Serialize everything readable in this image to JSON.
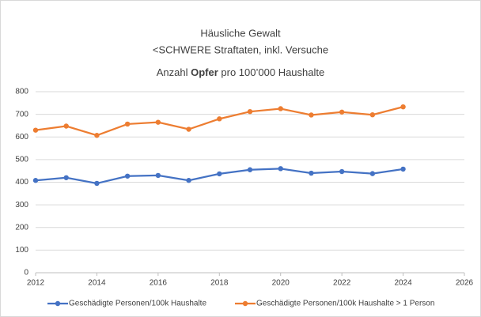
{
  "chart_data": {
    "type": "line",
    "title": "Häusliche Gewalt",
    "subtitle_top": "<SCHWERE Straftaten, inkl. Versuche",
    "subtitle_parts": [
      "Anzahl ",
      "Opfer",
      " pro 100’000 Haushalte"
    ],
    "x": [
      2012,
      2013,
      2014,
      2015,
      2016,
      2017,
      2018,
      2019,
      2020,
      2021,
      2022,
      2023,
      2024
    ],
    "series": [
      {
        "name": "Geschädigte Personen/100k Haushalte",
        "color": "#4472c4",
        "values": [
          408,
          420,
          395,
          427,
          430,
          408,
          437,
          455,
          460,
          440,
          447,
          438,
          458
        ]
      },
      {
        "name": "Geschädigte Personen/100k Haushalte > 1 Person",
        "color": "#ed7d31",
        "values": [
          630,
          648,
          607,
          657,
          665,
          634,
          680,
          712,
          725,
          697,
          710,
          698,
          733
        ]
      }
    ],
    "xlim": [
      2012,
      2026
    ],
    "xticks": [
      2012,
      2014,
      2016,
      2018,
      2020,
      2022,
      2024,
      2026
    ],
    "ylim": [
      0,
      800
    ],
    "yticks": [
      0,
      100,
      200,
      300,
      400,
      500,
      600,
      700,
      800
    ],
    "grid": true,
    "legend": "bottom"
  }
}
